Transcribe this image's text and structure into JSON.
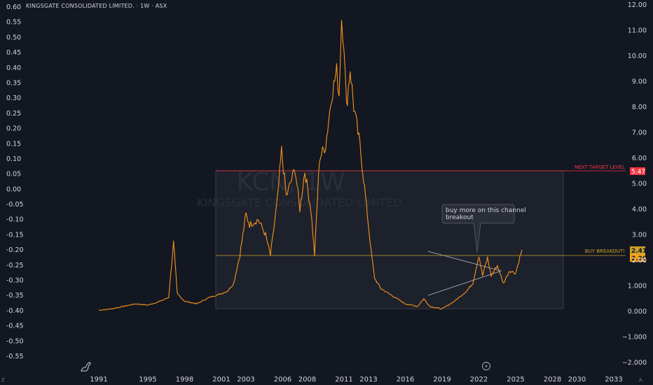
{
  "header": {
    "title": "KINGSGATE CONSOLIDATED LIMITED. · 1W · ASX"
  },
  "watermark": {
    "ticker": "KCN, 1W",
    "name": "KINGSGATE CONSOLIDATED LIMITED."
  },
  "colors": {
    "background": "#131722",
    "price": "#f7931a",
    "next_target": "#f23645",
    "buy_breakout": "#c9a227",
    "box": "#2a2e39",
    "triangle": "#b2b5be"
  },
  "annotations": {
    "callout": [
      "buy more on this channel",
      "breakout"
    ],
    "next_target_label": "NEXT TARGET LEVEL",
    "next_target_value": "5.47",
    "buy_breakout_label": "BUY BREAKOUT!",
    "buy_breakout_value_1": "2.41",
    "buy_breakout_value_2": "2.20"
  },
  "footer": {
    "left_marker": "Z",
    "right_marker": "A"
  },
  "chart_data": {
    "type": "line",
    "title": "KINGSGATE CONSOLIDATED LIMITED. · 1W · ASX",
    "right_axis": {
      "range": [
        -2.0,
        12.0
      ],
      "ticks": [
        "12.00",
        "11.00",
        "10.00",
        "9.00",
        "8.00",
        "7.00",
        "6.00",
        "5.00",
        "4.00",
        "3.00",
        "2.00",
        "1.000",
        "0.000",
        "−1.000",
        "−2.000"
      ]
    },
    "left_axis": {
      "range": [
        -0.55,
        0.6
      ],
      "ticks": [
        "0.60",
        "0.55",
        "0.50",
        "0.45",
        "0.40",
        "0.35",
        "0.30",
        "0.25",
        "0.20",
        "0.15",
        "0.10",
        "0.05",
        "0.00",
        "-0.05",
        "-0.10",
        "-0.15",
        "-0.20",
        "-0.25",
        "-0.30",
        "-0.35",
        "-0.40",
        "-0.45",
        "-0.50",
        "-0.55"
      ]
    },
    "x_ticks": [
      "1991",
      "1995",
      "1998",
      "2001",
      "2003",
      "2006",
      "2008",
      "2011",
      "2013",
      "2016",
      "2019",
      "2022",
      "2025",
      "2028",
      "2030",
      "2033"
    ],
    "x_tick_years": [
      1991,
      1995,
      1998,
      2001,
      2003,
      2006,
      2008,
      2011,
      2013,
      2016,
      2019,
      2022,
      2025,
      2028,
      2030,
      2033
    ],
    "series": [
      {
        "points": [
          [
            1991,
            0.05
          ],
          [
            1992,
            0.1
          ],
          [
            1993,
            0.2
          ],
          [
            1994,
            0.3
          ],
          [
            1995,
            0.25
          ],
          [
            1996,
            0.4
          ],
          [
            1996.7,
            0.55
          ],
          [
            1997.1,
            2.7
          ],
          [
            1997.4,
            0.7
          ],
          [
            1998,
            0.4
          ],
          [
            1999,
            0.3
          ],
          [
            2000,
            0.55
          ],
          [
            2001,
            0.7
          ],
          [
            2001.5,
            0.8
          ],
          [
            2002,
            1.1
          ],
          [
            2002.5,
            2.2
          ],
          [
            2003,
            3.8
          ],
          [
            2003.3,
            3.4
          ],
          [
            2004,
            3.6
          ],
          [
            2004.6,
            3.0
          ],
          [
            2005,
            2.2
          ],
          [
            2005.6,
            4.5
          ],
          [
            2005.9,
            6.3
          ],
          [
            2006.3,
            4.5
          ],
          [
            2007,
            5.6
          ],
          [
            2007.4,
            4.0
          ],
          [
            2007.8,
            5.5
          ],
          [
            2008.3,
            4.0
          ],
          [
            2008.6,
            2.2
          ],
          [
            2009,
            6.0
          ],
          [
            2009.5,
            6.5
          ],
          [
            2010,
            8.5
          ],
          [
            2010.4,
            9.4
          ],
          [
            2010.6,
            8.5
          ],
          [
            2010.8,
            11.5
          ],
          [
            2011,
            10.5
          ],
          [
            2011.2,
            8.0
          ],
          [
            2011.5,
            9.5
          ],
          [
            2011.8,
            8.0
          ],
          [
            2012.3,
            6.5
          ],
          [
            2012.6,
            5.2
          ],
          [
            2012.9,
            3.8
          ],
          [
            2013.2,
            2.4
          ],
          [
            2013.5,
            1.3
          ],
          [
            2014,
            0.9
          ],
          [
            2015,
            0.6
          ],
          [
            2016,
            0.3
          ],
          [
            2017,
            0.2
          ],
          [
            2017.5,
            0.5
          ],
          [
            2018,
            0.2
          ],
          [
            2019,
            0.1
          ],
          [
            2020,
            0.4
          ],
          [
            2021,
            0.8
          ],
          [
            2021.5,
            1.1
          ],
          [
            2022,
            2.2
          ],
          [
            2022.3,
            1.4
          ],
          [
            2022.7,
            2.1
          ],
          [
            2023,
            1.4
          ],
          [
            2023.5,
            1.8
          ],
          [
            2024,
            1.1
          ],
          [
            2024.5,
            1.6
          ],
          [
            2025,
            1.5
          ],
          [
            2025.5,
            2.41
          ]
        ]
      }
    ],
    "levels": [
      {
        "label": "NEXT TARGET LEVEL",
        "value": 5.47
      },
      {
        "label": "BUY BREAKOUT!",
        "value": 2.2
      }
    ],
    "grid": false,
    "legend": "none"
  }
}
